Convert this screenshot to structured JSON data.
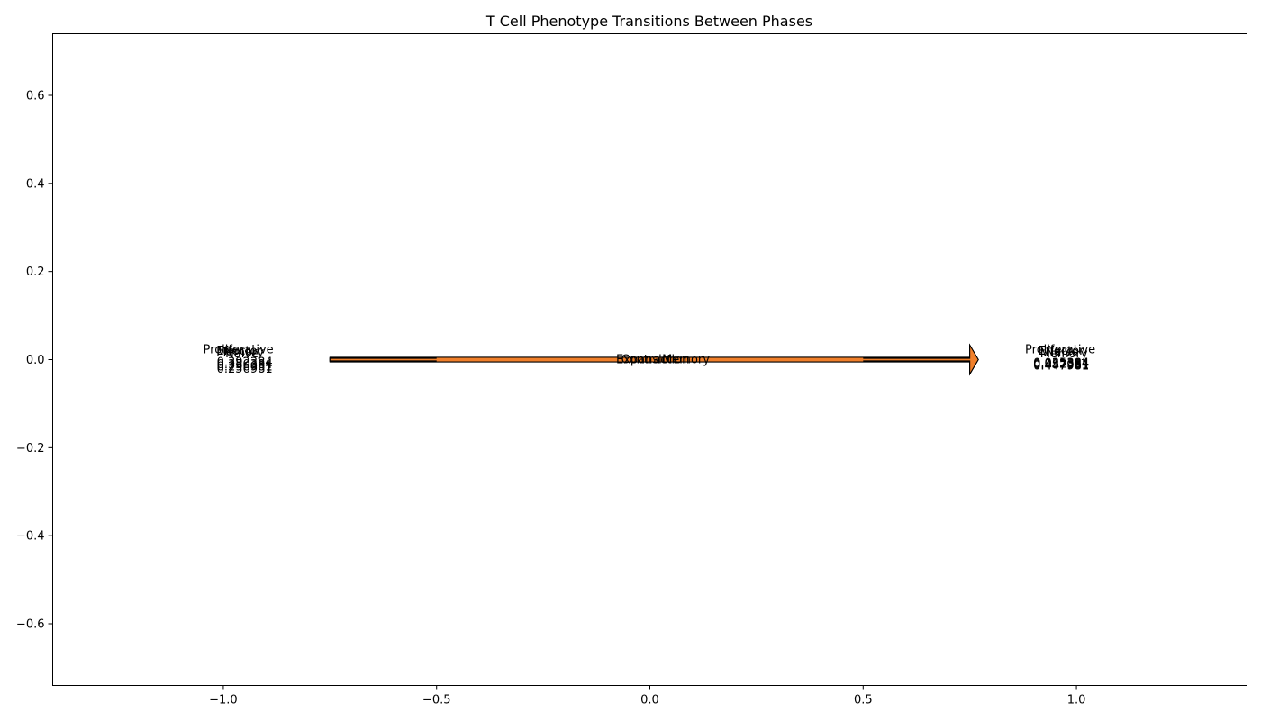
{
  "chart_data": {
    "type": "sankey",
    "title": "T Cell Phenotype Transitions Between Phases",
    "xlabel": "",
    "ylabel": "",
    "xlim": [
      -1.4,
      1.4
    ],
    "ylim": [
      -0.74,
      0.74
    ],
    "xticks": [
      -1.0,
      -0.5,
      0.0,
      0.5,
      1.0
    ],
    "xtick_labels": [
      "−1.0",
      "−0.5",
      "0.0",
      "0.5",
      "1.0"
    ],
    "yticks": [
      0.6,
      0.4,
      0.2,
      0.0,
      -0.2,
      -0.4,
      -0.6
    ],
    "ytick_labels": [
      "0.6",
      "0.4",
      "0.2",
      "0.0",
      "−0.2",
      "−0.4",
      "−0.6"
    ],
    "grid": false,
    "flow_color": "#f07f2a",
    "flow_edge_color": "#000000",
    "flows": [
      {
        "name": "Expansion",
        "source": "Proliferative",
        "target": "Effector",
        "source_value": "0.392384",
        "target_value": "0.392384"
      },
      {
        "name": "Contraction",
        "source": "Effector",
        "target": "Proliferative",
        "source_value": "0.350384",
        "target_value": "0.350384"
      },
      {
        "name": "Memory",
        "source": "Naive",
        "target": "Memory",
        "source_value": "0.296981",
        "target_value": "0.296981"
      },
      {
        "name": "Memory",
        "source": "Memory",
        "target": "Naive",
        "source_value": "0.256981",
        "target_value": "0.256981"
      }
    ],
    "left_labels": [
      "Proliferative",
      "Effector",
      "Memory",
      "Naive"
    ],
    "left_values": [
      "0.392384",
      "0.350384",
      "0.296981",
      "0.256981"
    ],
    "right_labels": [
      "Proliferative",
      "Effector",
      "Naive",
      "Memory"
    ],
    "right_values": [
      "0.035384",
      "0.052384",
      "0.487981",
      "0.447981"
    ],
    "flow_labels": [
      "Expansion",
      "Contraction",
      "Memory"
    ]
  }
}
